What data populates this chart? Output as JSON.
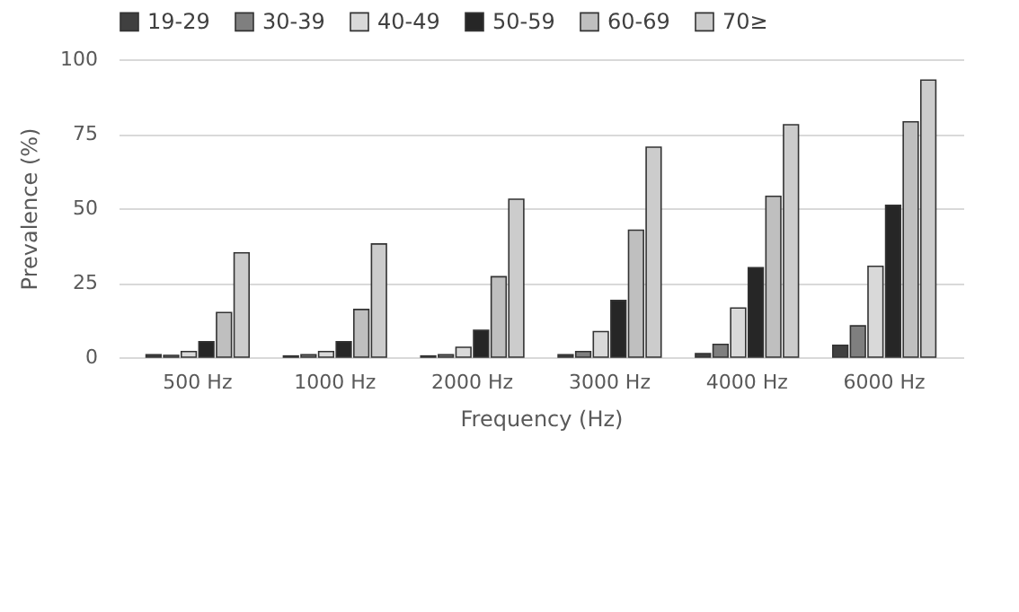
{
  "chart_data": {
    "type": "bar",
    "xlabel": "Frequency (Hz)",
    "ylabel": "Prevalence (%)",
    "categories": [
      "500 Hz",
      "1000 Hz",
      "2000 Hz",
      "3000 Hz",
      "4000 Hz",
      "6000 Hz"
    ],
    "series": [
      {
        "name": "19-29",
        "color": "#404040",
        "values": [
          0.8,
          0.4,
          0.4,
          0.8,
          1.2,
          4
        ]
      },
      {
        "name": "30-39",
        "color": "#7f7f7f",
        "values": [
          0.6,
          0.8,
          0.8,
          1.9,
          4.3,
          10.5
        ]
      },
      {
        "name": "40-49",
        "color": "#d9d9d9",
        "values": [
          1.9,
          1.9,
          3.3,
          8.6,
          16.5,
          30.5
        ]
      },
      {
        "name": "50-59",
        "color": "#262626",
        "values": [
          5.2,
          5.2,
          9,
          19,
          30,
          51
        ]
      },
      {
        "name": "60-69",
        "color": "#bfbfbf",
        "values": [
          15,
          16,
          27,
          42.6,
          54,
          79
        ]
      },
      {
        "name": "70≥",
        "color": "#cccccc",
        "values": [
          35,
          38,
          53,
          70.5,
          78,
          93
        ]
      }
    ],
    "ylim": [
      0,
      100
    ],
    "yticks": [
      0,
      25,
      50,
      75,
      100
    ],
    "grid": "y",
    "legend": "top"
  }
}
